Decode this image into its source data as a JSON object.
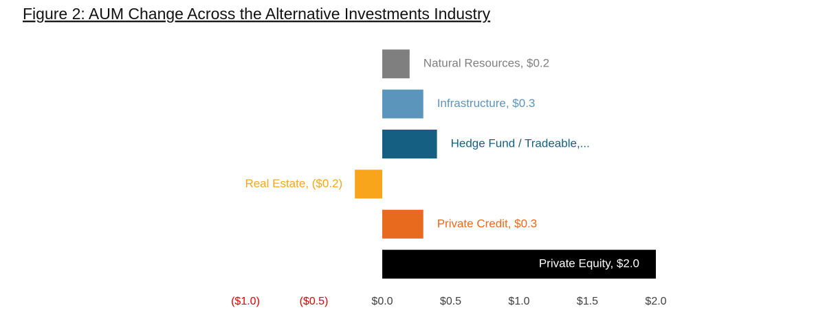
{
  "chart_data": {
    "type": "hbar",
    "title": "Figure 2: AUM Change Across the Alternative Investments Industry",
    "values": [
      0.2,
      0.3,
      0.4,
      -0.2,
      0.3,
      2.0
    ],
    "value_labels": [
      "Natural Resources, $0.2",
      "Infrastructure, $0.3",
      "Hedge Fund / Tradeable,...",
      "Real Estate, ($0.2)",
      "Private Credit, $0.3",
      "Private Equity, $2.0"
    ],
    "colors": [
      "#7f7f7f",
      "#5b95bb",
      "#156082",
      "#f9a51c",
      "#e86a1e",
      "#000000"
    ],
    "xlim": [
      -1.0,
      2.0
    ],
    "xticks": [
      {
        "value": -1.0,
        "label": "($1.0)"
      },
      {
        "value": -0.5,
        "label": "($0.5)"
      },
      {
        "value": 0.0,
        "label": "$0.0"
      },
      {
        "value": 0.5,
        "label": "$0.5"
      },
      {
        "value": 1.0,
        "label": "$1.0"
      },
      {
        "value": 1.5,
        "label": "$1.5"
      },
      {
        "value": 2.0,
        "label": "$2.0"
      }
    ],
    "negative_tick_color": "#e00000",
    "tick_color": "#404040",
    "grid": false
  }
}
